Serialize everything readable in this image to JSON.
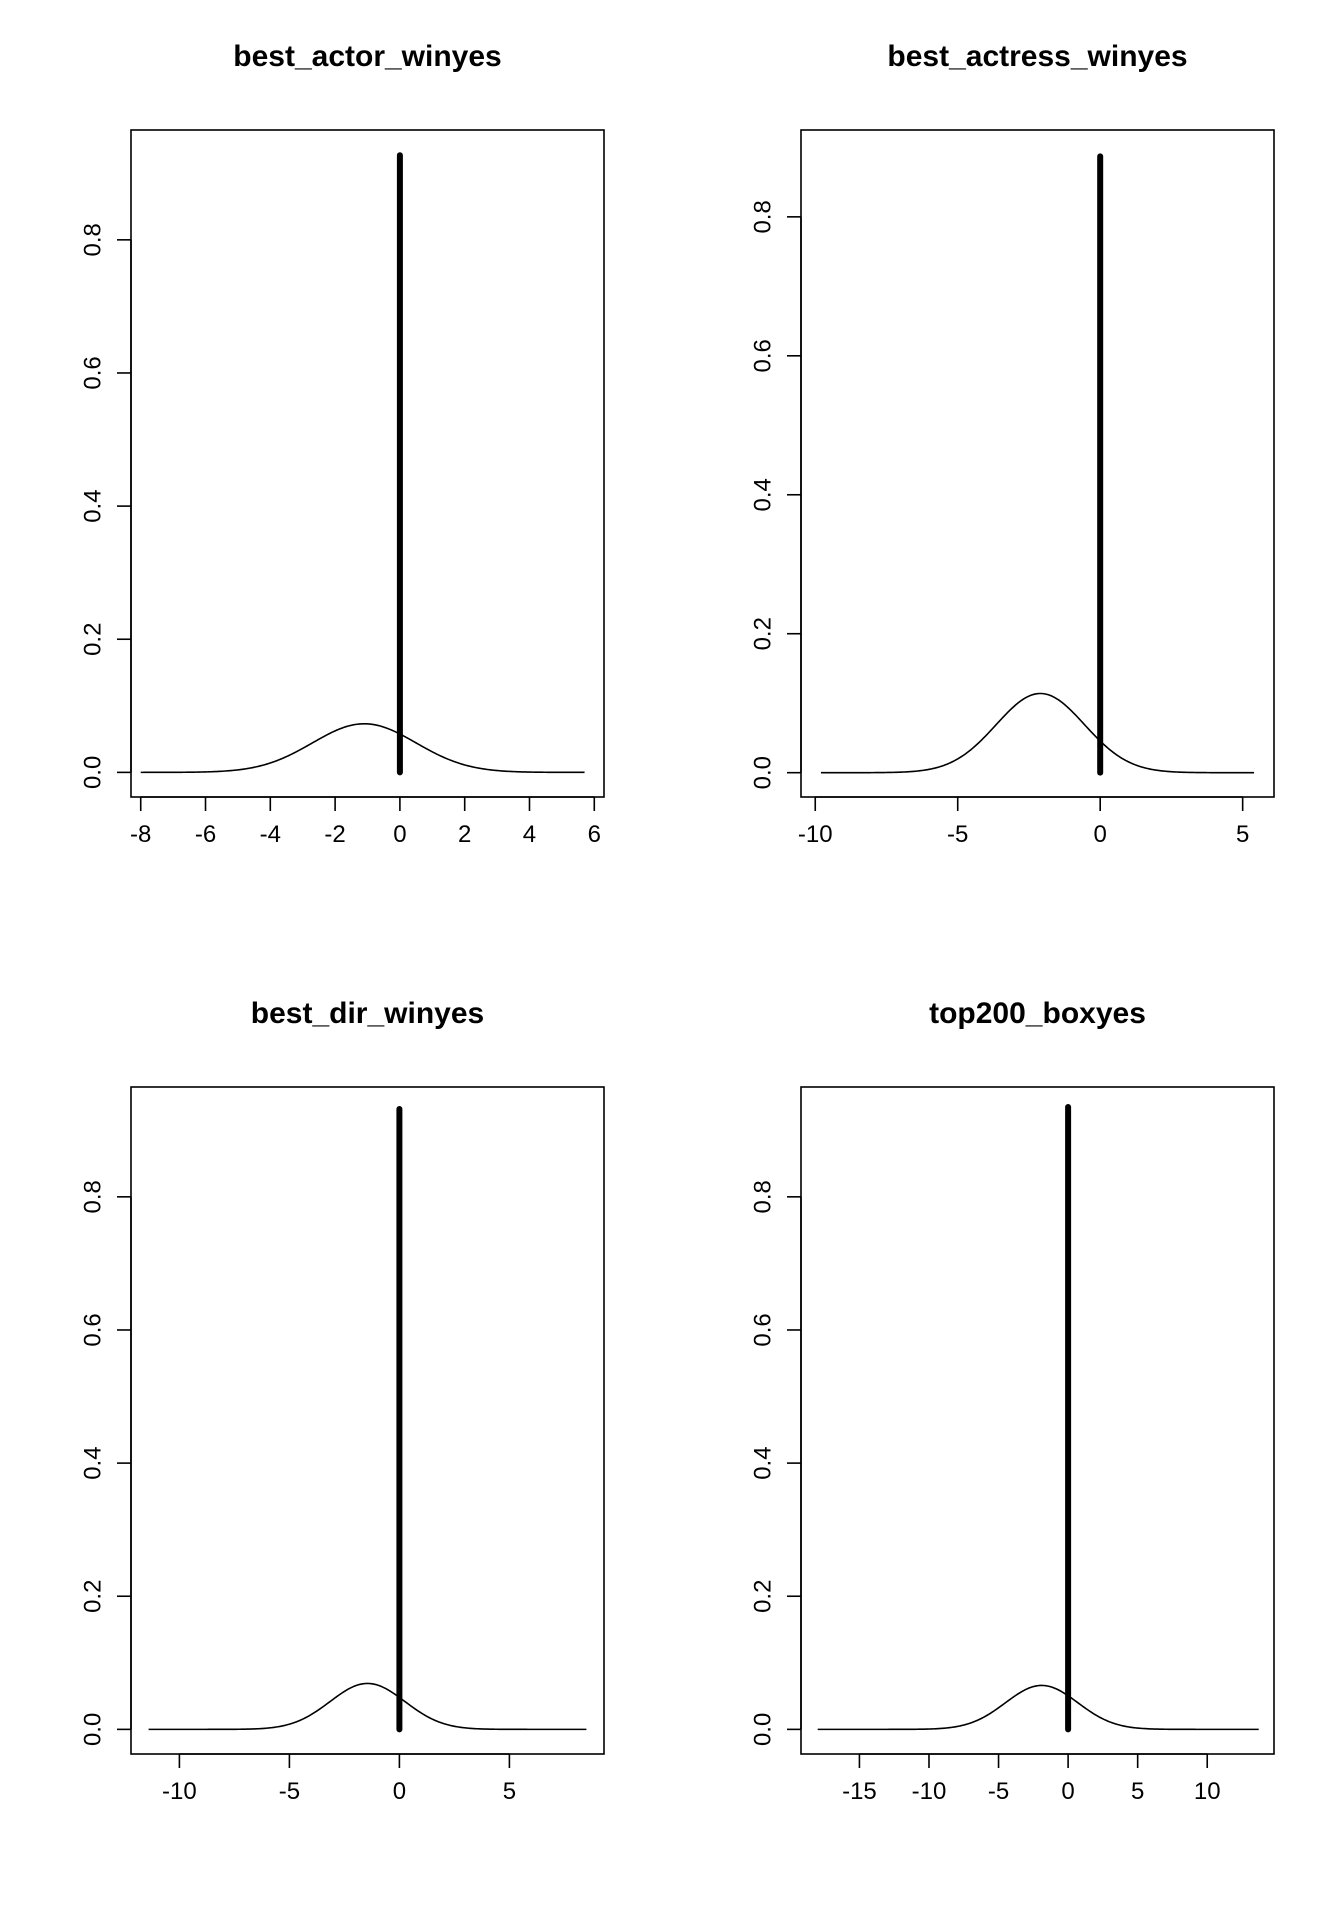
{
  "chart_data": [
    {
      "type": "line",
      "title": "best_actor_winyes",
      "xlabel": "",
      "ylabel": "",
      "xlim": [
        -8.3,
        6.3
      ],
      "ylim": [
        -0.037,
        0.965
      ],
      "x_ticks": [
        -8,
        -6,
        -4,
        -2,
        0,
        2,
        4,
        6
      ],
      "x_tick_labels": [
        "-8",
        "-6",
        "-4",
        "-2",
        "0",
        "2",
        "4",
        "6"
      ],
      "y_ticks": [
        0.0,
        0.2,
        0.4,
        0.6,
        0.8
      ],
      "y_tick_labels": [
        "0.0",
        "0.2",
        "0.4",
        "0.6",
        "0.8"
      ],
      "density_curve": {
        "range": [
          -8.0,
          5.7
        ],
        "mean": -1.1,
        "sd": 1.6,
        "peak": 0.073
      },
      "spike": {
        "x": 0,
        "y_from": 0,
        "y_to": 0.927
      }
    },
    {
      "type": "line",
      "title": "best_actress_winyes",
      "xlabel": "",
      "ylabel": "",
      "xlim": [
        -10.5,
        6.1
      ],
      "ylim": [
        -0.035,
        0.925
      ],
      "x_ticks": [
        -10,
        -5,
        0,
        5
      ],
      "x_tick_labels": [
        "-10",
        "-5",
        "0",
        "5"
      ],
      "y_ticks": [
        0.0,
        0.2,
        0.4,
        0.6,
        0.8
      ],
      "y_tick_labels": [
        "0.0",
        "0.2",
        "0.4",
        "0.6",
        "0.8"
      ],
      "density_curve": {
        "range": [
          -9.8,
          5.4
        ],
        "mean": -2.1,
        "sd": 1.55,
        "peak": 0.114
      },
      "spike": {
        "x": 0,
        "y_from": 0,
        "y_to": 0.887
      }
    },
    {
      "type": "line",
      "title": "best_dir_winyes",
      "xlabel": "",
      "ylabel": "",
      "xlim": [
        -12.2,
        9.3
      ],
      "ylim": [
        -0.037,
        0.965
      ],
      "x_ticks": [
        -10,
        -5,
        0,
        5
      ],
      "x_tick_labels": [
        "-10",
        "-5",
        "0",
        "5"
      ],
      "y_ticks": [
        0.0,
        0.2,
        0.4,
        0.6,
        0.8
      ],
      "y_tick_labels": [
        "0.0",
        "0.2",
        "0.4",
        "0.6",
        "0.8"
      ],
      "density_curve": {
        "range": [
          -11.4,
          8.5
        ],
        "mean": -1.45,
        "sd": 1.7,
        "peak": 0.069
      },
      "spike": {
        "x": 0,
        "y_from": 0,
        "y_to": 0.932
      }
    },
    {
      "type": "line",
      "title": "top200_boxyes",
      "xlabel": "",
      "ylabel": "",
      "xlim": [
        -19.2,
        14.8
      ],
      "ylim": [
        -0.037,
        0.965
      ],
      "x_ticks": [
        -15,
        -10,
        -5,
        0,
        5,
        10
      ],
      "x_tick_labels": [
        "-15",
        "-10",
        "-5",
        "0",
        "5",
        "10"
      ],
      "y_ticks": [
        0.0,
        0.2,
        0.4,
        0.6,
        0.8
      ],
      "y_tick_labels": [
        "0.0",
        "0.2",
        "0.4",
        "0.6",
        "0.8"
      ],
      "density_curve": {
        "range": [
          -18.0,
          13.7
        ],
        "mean": -1.9,
        "sd": 2.6,
        "peak": 0.066
      },
      "spike": {
        "x": 0,
        "y_from": 0,
        "y_to": 0.935
      }
    }
  ]
}
